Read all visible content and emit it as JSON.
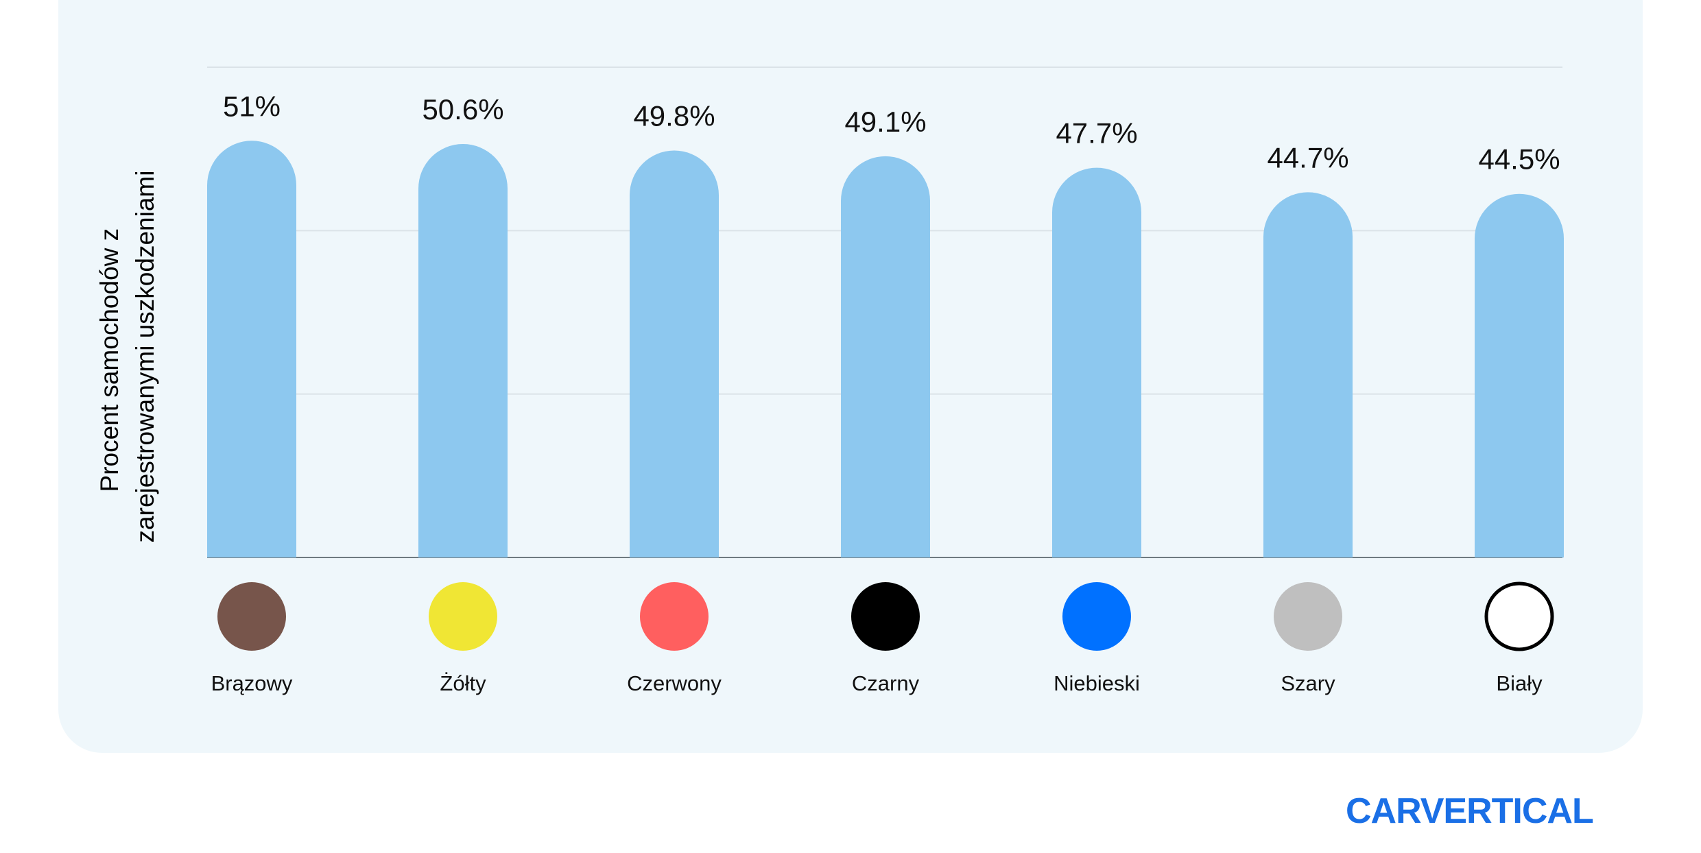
{
  "chart_data": {
    "type": "bar",
    "ylabel_lines": [
      "Procent samochodów z",
      "zarejestrowanymi uszkodzeniami"
    ],
    "categories": [
      "Brązowy",
      "Żółty",
      "Czerwony",
      "Czarny",
      "Niebieski",
      "Szary",
      "Biały"
    ],
    "values": [
      51,
      50.6,
      49.8,
      49.1,
      47.7,
      44.7,
      44.5
    ],
    "value_labels": [
      "51%",
      "50.6%",
      "49.8%",
      "49.1%",
      "47.7%",
      "44.7%",
      "44.5%"
    ],
    "swatch_colors": [
      "#77554b",
      "#f0e634",
      "#ff5f5f",
      "#000000",
      "#0071ff",
      "#bfbfbf",
      "#ffffff"
    ],
    "bar_color": "#8dc8ef",
    "ylim": [
      0,
      60
    ],
    "grid": true
  },
  "brand": {
    "logo_text": "CARVERTICAL",
    "color": "#1a6fe6"
  }
}
